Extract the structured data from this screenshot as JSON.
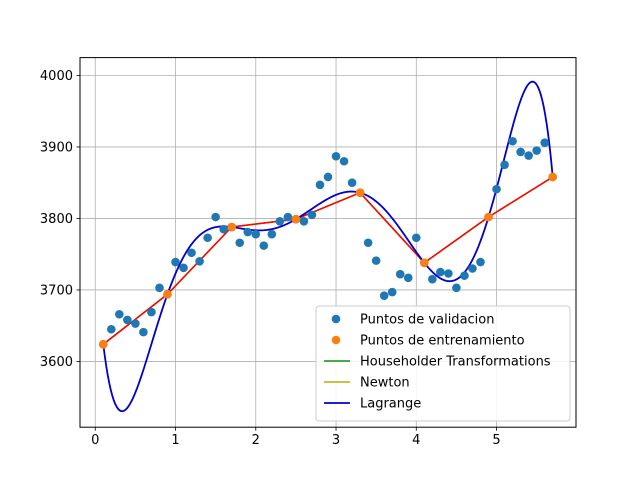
{
  "chart_data": {
    "type": "scatter",
    "xlim": [
      -0.19,
      5.99
    ],
    "ylim": [
      3508,
      4025
    ],
    "x_ticks": [
      0,
      1,
      2,
      3,
      4,
      5
    ],
    "y_ticks": [
      3600,
      3700,
      3800,
      3900,
      4000
    ],
    "grid": true,
    "legend_position": "lower-right",
    "series": [
      {
        "name": "Puntos de validacion",
        "kind": "scatter",
        "color": "#1f77b4",
        "x": [
          0.1,
          0.2,
          0.3,
          0.4,
          0.5,
          0.6,
          0.7,
          0.8,
          0.9,
          1.0,
          1.1,
          1.2,
          1.3,
          1.4,
          1.5,
          1.6,
          1.7,
          1.8,
          1.9,
          2.0,
          2.1,
          2.2,
          2.3,
          2.4,
          2.5,
          2.6,
          2.7,
          2.8,
          2.9,
          3.0,
          3.1,
          3.2,
          3.3,
          3.4,
          3.5,
          3.6,
          3.7,
          3.8,
          3.9,
          4.0,
          4.1,
          4.2,
          4.3,
          4.4,
          4.5,
          4.6,
          4.7,
          4.8,
          4.9,
          5.0,
          5.1,
          5.2,
          5.3,
          5.4,
          5.5,
          5.6,
          5.7
        ],
        "y": [
          3624,
          3645,
          3666,
          3658,
          3653,
          3641,
          3669,
          3703,
          3694,
          3739,
          3731,
          3752,
          3740,
          3773,
          3802,
          3785,
          3788,
          3766,
          3781,
          3778,
          3762,
          3778,
          3796,
          3802,
          3799,
          3796,
          3805,
          3847,
          3858,
          3887,
          3880,
          3850,
          3836,
          3766,
          3741,
          3692,
          3697,
          3722,
          3717,
          3773,
          3738,
          3715,
          3725,
          3723,
          3703,
          3720,
          3730,
          3739,
          3802,
          3841,
          3875,
          3908,
          3893,
          3888,
          3895,
          3906,
          3858
        ]
      },
      {
        "name": "Puntos de entrenamiento",
        "kind": "scatter",
        "color": "#ff7f0e",
        "x": [
          0.1,
          0.9,
          1.7,
          2.5,
          3.3,
          4.1,
          4.9,
          5.7
        ],
        "y": [
          3624,
          3694,
          3788,
          3799,
          3836,
          3738,
          3802,
          3858
        ]
      },
      {
        "name": "Householder Transformations",
        "kind": "line",
        "color": "#2ca02c",
        "x": [
          0.1,
          0.9,
          1.7,
          2.5,
          3.3,
          4.1,
          4.9,
          5.7
        ],
        "y": [
          3624,
          3694,
          3788,
          3799,
          3836,
          3738,
          3802,
          3858
        ]
      },
      {
        "name": "Newton",
        "kind": "line",
        "color": "#bcbd22",
        "x": [
          0.1,
          0.9,
          1.7,
          2.5,
          3.3,
          4.1,
          4.9,
          5.7
        ],
        "y": [
          3624,
          3694,
          3788,
          3799,
          3836,
          3738,
          3802,
          3858
        ]
      },
      {
        "name": "",
        "kind": "line",
        "color": "#ff0000",
        "x": [
          0.1,
          0.9,
          1.7,
          2.5,
          3.3,
          4.1,
          4.9,
          5.7
        ],
        "y": [
          3624,
          3694,
          3788,
          3799,
          3836,
          3738,
          3802,
          3858
        ]
      },
      {
        "name": "Lagrange",
        "kind": "interpolating-curve",
        "color": "#0000cc",
        "x": [
          0.1,
          0.9,
          1.7,
          2.5,
          3.3,
          4.1,
          4.9,
          5.7
        ],
        "y": [
          3624,
          3694,
          3788,
          3799,
          3836,
          3738,
          3802,
          3858
        ]
      }
    ]
  }
}
